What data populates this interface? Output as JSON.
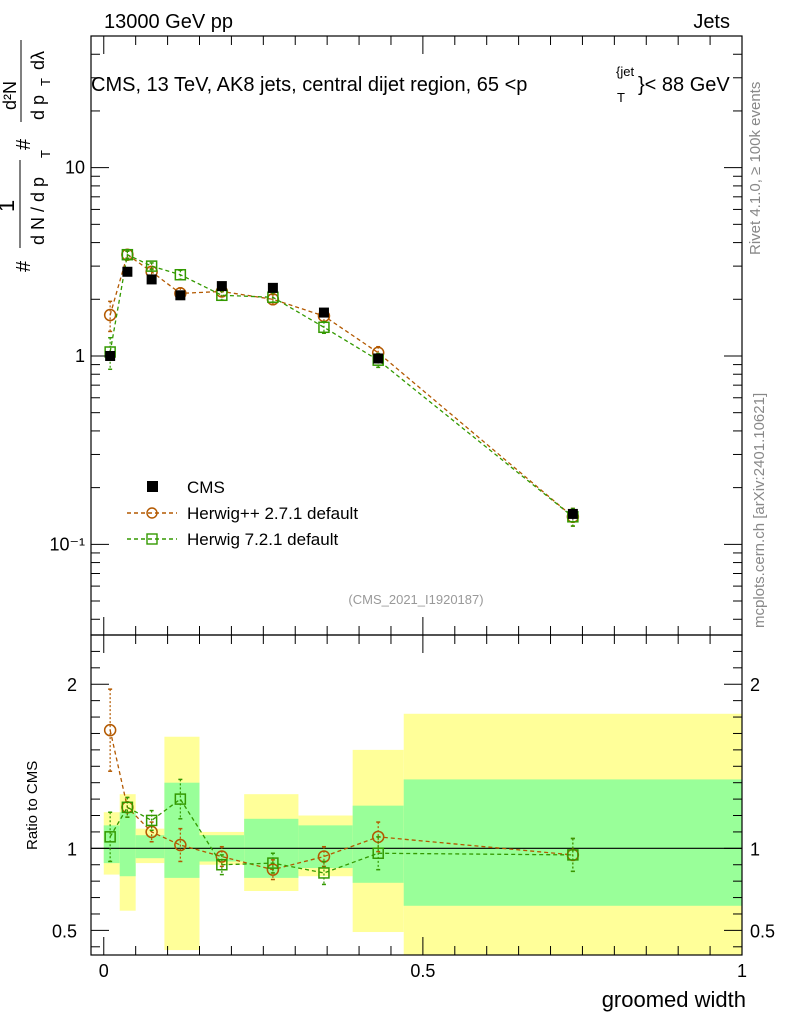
{
  "header": {
    "energy": "13000 GeV pp",
    "category": "Jets"
  },
  "side_labels": {
    "rivet": "Rivet 4.1.0, ≥ 100k events",
    "site": "mcplots.cern.ch [arXiv:2401.10621]"
  },
  "main_plot": {
    "title_prefix": "CMS, 13 TeV, AK8 jets, central dijet region, 65 <p",
    "title_sub": "T",
    "title_sup": "{jet",
    "title_suffix": "}< 88 GeV",
    "ylabel": "1/(dN/dpT) d²N/(dpT dλ)",
    "y_ticks": [
      {
        "v": 10,
        "label": "10"
      },
      {
        "v": 1,
        "label": "1"
      },
      {
        "v": 0.1,
        "label": "10⁻¹"
      }
    ],
    "ylim": [
      0.033,
      50
    ],
    "watermark": "(CMS_2021_I1920187)"
  },
  "legend": {
    "cms": "CMS",
    "herwigpp": "Herwig++ 2.7.1 default",
    "herwig7": "Herwig 7.2.1 default"
  },
  "ratio_plot": {
    "ylabel": "Ratio to CMS",
    "ylim": [
      0.35,
      2.3
    ],
    "y_ticks": [
      {
        "v": 0.5,
        "label": "0.5"
      },
      {
        "v": 1,
        "label": "1"
      },
      {
        "v": 2,
        "label": "2"
      }
    ]
  },
  "x_axis": {
    "xlabel": "groomed width",
    "xlim": [
      -0.02,
      1.0
    ],
    "ticks": [
      {
        "v": 0,
        "label": "0"
      },
      {
        "v": 0.5,
        "label": "0.5"
      },
      {
        "v": 1,
        "label": "1"
      }
    ]
  },
  "colors": {
    "cms": "#000000",
    "herwigpp": "#b35900",
    "herwig7": "#339900",
    "band_yellow": "#ffff99",
    "band_green": "#99ff99"
  },
  "chart_data": {
    "type": "scatter",
    "bins": [
      {
        "lo": 0.0,
        "hi": 0.025,
        "cms": 1.0,
        "cms_err": 0.04,
        "green": [
          0.91,
          1.14
        ],
        "yellow": [
          0.84,
          1.22
        ]
      },
      {
        "lo": 0.025,
        "hi": 0.05,
        "cms": 2.8,
        "cms_err": 0.08,
        "green": [
          0.83,
          1.22
        ],
        "yellow": [
          0.62,
          1.33
        ]
      },
      {
        "lo": 0.05,
        "hi": 0.095,
        "cms": 2.55,
        "cms_err": 0.08,
        "green": [
          0.94,
          1.08
        ],
        "yellow": [
          0.91,
          1.12
        ]
      },
      {
        "lo": 0.095,
        "hi": 0.15,
        "cms": 2.1,
        "cms_err": 0.1,
        "green": [
          0.82,
          1.4
        ],
        "yellow": [
          0.38,
          1.68
        ]
      },
      {
        "lo": 0.15,
        "hi": 0.22,
        "cms": 2.35,
        "cms_err": 0.1,
        "green": [
          0.92,
          1.08
        ],
        "yellow": [
          0.9,
          1.1
        ]
      },
      {
        "lo": 0.22,
        "hi": 0.305,
        "cms": 2.3,
        "cms_err": 0.1,
        "green": [
          0.82,
          1.18
        ],
        "yellow": [
          0.74,
          1.33
        ]
      },
      {
        "lo": 0.305,
        "hi": 0.39,
        "cms": 1.7,
        "cms_err": 0.07,
        "green": [
          0.88,
          1.14
        ],
        "yellow": [
          0.83,
          1.2
        ]
      },
      {
        "lo": 0.39,
        "hi": 0.47,
        "cms": 0.97,
        "cms_err": 0.05,
        "green": [
          0.79,
          1.26
        ],
        "yellow": [
          0.49,
          1.6
        ]
      },
      {
        "lo": 0.47,
        "hi": 1.0,
        "cms": 0.145,
        "cms_err": 0.01,
        "green": [
          0.65,
          1.42
        ],
        "yellow": [
          0.3,
          1.82
        ]
      }
    ],
    "series": [
      {
        "name": "Herwig++ 2.7.1 default",
        "key": "herwigpp",
        "x": [
          0.01,
          0.037,
          0.075,
          0.12,
          0.185,
          0.265,
          0.345,
          0.43,
          0.735
        ],
        "y": [
          1.65,
          3.45,
          2.8,
          2.15,
          2.2,
          2.0,
          1.63,
          1.04,
          0.14
        ],
        "yerr": [
          0.3,
          0.15,
          0.12,
          0.15,
          0.12,
          0.12,
          0.1,
          0.08,
          0.015
        ],
        "ratio": [
          1.72,
          1.25,
          1.1,
          1.02,
          0.95,
          0.87,
          0.95,
          1.07,
          0.96
        ],
        "ratio_err": [
          0.25,
          0.06,
          0.06,
          0.1,
          0.06,
          0.06,
          0.06,
          0.09,
          0.1
        ]
      },
      {
        "name": "Herwig 7.2.1 default",
        "key": "herwig7",
        "x": [
          0.01,
          0.037,
          0.075,
          0.12,
          0.185,
          0.265,
          0.345,
          0.43,
          0.735
        ],
        "y": [
          1.05,
          3.45,
          3.0,
          2.7,
          2.1,
          2.05,
          1.42,
          0.95,
          0.14
        ],
        "yerr": [
          0.2,
          0.15,
          0.12,
          0.15,
          0.12,
          0.12,
          0.1,
          0.08,
          0.015
        ],
        "ratio": [
          1.07,
          1.25,
          1.17,
          1.3,
          0.9,
          0.91,
          0.85,
          0.97,
          0.96
        ],
        "ratio_err": [
          0.15,
          0.06,
          0.06,
          0.12,
          0.06,
          0.06,
          0.07,
          0.1,
          0.1
        ]
      }
    ]
  }
}
